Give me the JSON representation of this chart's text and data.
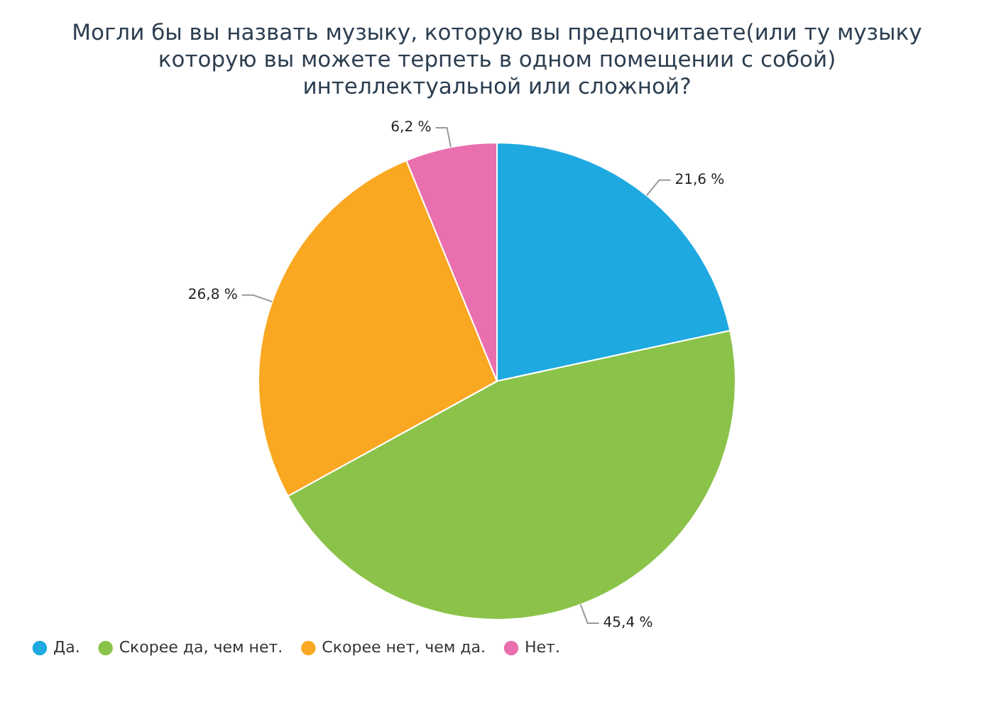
{
  "chart_data": {
    "type": "pie",
    "title": "Могли бы вы назвать музыку, которую вы предпочитаете(или ту музыку которую вы можете терпеть в одном помещении с собой) интеллектуальной или сложной?",
    "categories": [
      "Да.",
      "Скорее да, чем нет.",
      "Скорее нет, чем да.",
      "Нет."
    ],
    "values": [
      21.6,
      45.4,
      26.8,
      6.2
    ],
    "colors": [
      "#1fa9e1",
      "#8bc34a",
      "#faa822",
      "#e96fae"
    ],
    "value_labels": [
      "21,6 %",
      "45,4 %",
      "26,8 %",
      "6,2 %"
    ],
    "legend": "bottom left"
  }
}
